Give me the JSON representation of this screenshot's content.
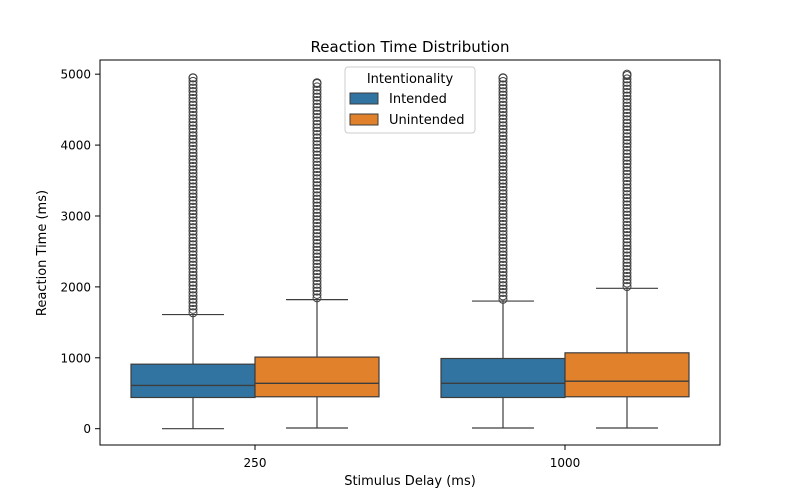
{
  "chart_data": {
    "type": "box",
    "title": "Reaction Time Distribution",
    "xlabel": "Stimulus Delay (ms)",
    "ylabel": "Reaction Time (ms)",
    "categories": [
      "250",
      "1000"
    ],
    "ylim": [
      -230,
      5200
    ],
    "yticks": [
      0,
      1000,
      2000,
      3000,
      4000,
      5000
    ],
    "legend": {
      "title": "Intentionality",
      "placement": "top-center",
      "entries": [
        "Intended",
        "Unintended"
      ]
    },
    "series": [
      {
        "name": "Intended",
        "color": "#3274a1",
        "boxes": [
          {
            "category": "250",
            "whisker_low": 0,
            "q1": 440,
            "median": 610,
            "q3": 910,
            "whisker_high": 1610,
            "outlier_max": 4950
          },
          {
            "category": "1000",
            "whisker_low": 10,
            "q1": 440,
            "median": 640,
            "q3": 990,
            "whisker_high": 1800,
            "outlier_max": 4950
          }
        ]
      },
      {
        "name": "Unintended",
        "color": "#e1812c",
        "boxes": [
          {
            "category": "250",
            "whisker_low": 10,
            "q1": 450,
            "median": 640,
            "q3": 1010,
            "whisker_high": 1820,
            "outlier_max": 4880
          },
          {
            "category": "1000",
            "whisker_low": 10,
            "q1": 450,
            "median": 670,
            "q3": 1070,
            "whisker_high": 1980,
            "outlier_max": 5000
          }
        ]
      }
    ]
  }
}
